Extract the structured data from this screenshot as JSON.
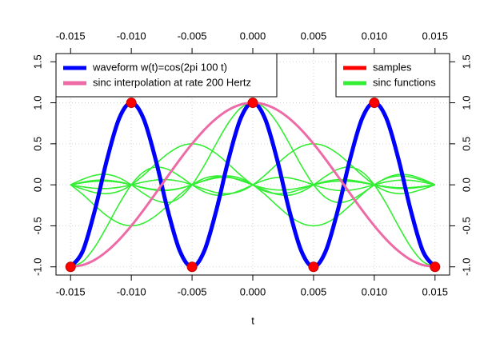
{
  "chart_data": {
    "type": "line",
    "xlabel": "t",
    "xlim": [
      -0.0162,
      0.0162
    ],
    "ylim": [
      -1.1,
      1.6
    ],
    "xticks": [
      -0.015,
      {
        "value": -0.01,
        "label": "-0.010"
      },
      -0.005,
      {
        "value": 0,
        "label": "0.000"
      },
      0.005,
      {
        "value": 0.01,
        "label": "0.010"
      },
      0.015
    ],
    "yticks": [
      {
        "value": -1,
        "label": "-1.0"
      },
      -0.5,
      {
        "value": 0,
        "label": "0.0"
      },
      0.5,
      {
        "value": 1,
        "label": "1.0"
      },
      1.5
    ],
    "grid": true,
    "x": [
      -0.015,
      -0.014,
      -0.013,
      -0.012,
      -0.011,
      -0.01,
      -0.009,
      -0.008,
      -0.007,
      -0.006,
      -0.005,
      -0.004,
      -0.003,
      -0.002,
      -0.001,
      0,
      0.001,
      0.002,
      0.003,
      0.004,
      0.005,
      0.006,
      0.007,
      0.008,
      0.009,
      0.01,
      0.011,
      0.012,
      0.013,
      0.014,
      0.015
    ],
    "series": [
      {
        "name": "waveform w(t)=cos(2pi 100 t)",
        "color": "#0000ff",
        "legend": "topleft",
        "values": [
          -1,
          -0.809,
          -0.309,
          0.309,
          0.809,
          1,
          0.809,
          0.309,
          -0.309,
          -0.809,
          -1,
          -0.809,
          -0.309,
          0.309,
          0.809,
          1,
          0.809,
          0.309,
          -0.309,
          -0.809,
          -1,
          -0.809,
          -0.309,
          0.309,
          0.809,
          1,
          0.809,
          0.309,
          -0.309,
          -0.809,
          -1
        ]
      },
      {
        "name": "sinc interpolation at rate 200 Hertz",
        "color": "#ee6aa7",
        "legend": "topleft",
        "values": [
          -1,
          -0.978,
          -0.914,
          -0.809,
          -0.669,
          -0.5,
          -0.309,
          -0.105,
          0.105,
          0.309,
          0.5,
          0.669,
          0.809,
          0.914,
          0.978,
          1,
          0.978,
          0.914,
          0.809,
          0.669,
          0.5,
          0.309,
          0.105,
          -0.105,
          -0.309,
          -0.5,
          -0.669,
          -0.809,
          -0.914,
          -0.978,
          -1
        ]
      },
      {
        "name": "samples",
        "color": "#ff0000",
        "legend": "topright",
        "x": [
          -0.015,
          -0.01,
          -0.005,
          0,
          0.005,
          0.01,
          0.015
        ],
        "values": [
          -1,
          1,
          -1,
          1,
          -1,
          1,
          -1
        ]
      },
      {
        "name": "sinc functions",
        "color": "#33ee33",
        "legend": "topright",
        "curves": [
          [
            -1,
            -0.936,
            -0.757,
            -0.505,
            -0.234,
            0,
            0.156,
            0.216,
            0.189,
            0.104,
            0,
            -0.085,
            -0.126,
            -0.116,
            -0.067,
            0,
            0.059,
            0.089,
            0.084,
            0.049,
            0,
            -0.045,
            -0.069,
            -0.066,
            -0.039,
            0,
            0.036,
            0.056,
            0.054,
            0.032,
            0
          ],
          [
            0,
            -0.117,
            -0.253,
            -0.379,
            -0.468,
            -0.5,
            -0.468,
            -0.379,
            -0.253,
            -0.117,
            0,
            0.078,
            0.108,
            0.095,
            0.052,
            0,
            -0.043,
            -0.063,
            -0.058,
            -0.034,
            0,
            0.03,
            0.045,
            0.042,
            0.025,
            0,
            -0.023,
            -0.035,
            -0.033,
            -0.02,
            0
          ],
          [
            0,
            -0.052,
            -0.095,
            -0.108,
            -0.078,
            0,
            0.117,
            0.253,
            0.379,
            0.468,
            0.5,
            0.468,
            0.379,
            0.253,
            0.117,
            0,
            -0.078,
            -0.108,
            -0.095,
            -0.052,
            0,
            0.043,
            0.063,
            0.058,
            0.034,
            0,
            -0.03,
            -0.045,
            -0.042,
            -0.025,
            0
          ],
          [
            0,
            0.067,
            0.116,
            0.126,
            0.085,
            0,
            -0.104,
            -0.189,
            -0.216,
            -0.156,
            0,
            0.234,
            0.505,
            0.757,
            0.936,
            1,
            0.936,
            0.757,
            0.505,
            0.234,
            0,
            -0.156,
            -0.216,
            -0.189,
            -0.104,
            0,
            0.085,
            0.126,
            0.116,
            0.067,
            0
          ],
          [
            0,
            -0.025,
            -0.042,
            -0.045,
            -0.03,
            0,
            0.034,
            0.058,
            0.063,
            0.043,
            0,
            -0.052,
            -0.095,
            -0.108,
            -0.078,
            0,
            0.117,
            0.253,
            0.379,
            0.468,
            0.5,
            0.468,
            0.379,
            0.253,
            0.117,
            0,
            -0.078,
            -0.108,
            -0.095,
            -0.052,
            0
          ],
          [
            0,
            0.025,
            0.042,
            0.045,
            0.03,
            0,
            -0.034,
            -0.058,
            -0.063,
            -0.043,
            0,
            0.052,
            0.095,
            0.108,
            0.078,
            0,
            -0.117,
            -0.253,
            -0.379,
            -0.468,
            -0.5,
            -0.468,
            -0.379,
            -0.253,
            -0.117,
            0,
            0.078,
            0.108,
            0.095,
            0.052,
            0
          ],
          [
            0,
            0.032,
            0.054,
            0.056,
            0.036,
            0,
            -0.039,
            -0.066,
            -0.069,
            -0.045,
            0,
            0.049,
            0.084,
            0.089,
            0.059,
            0,
            -0.067,
            -0.116,
            -0.126,
            -0.085,
            0,
            0.104,
            0.189,
            0.216,
            0.156,
            0,
            -0.234,
            -0.505,
            -0.757,
            -0.936,
            -1
          ]
        ]
      }
    ]
  }
}
